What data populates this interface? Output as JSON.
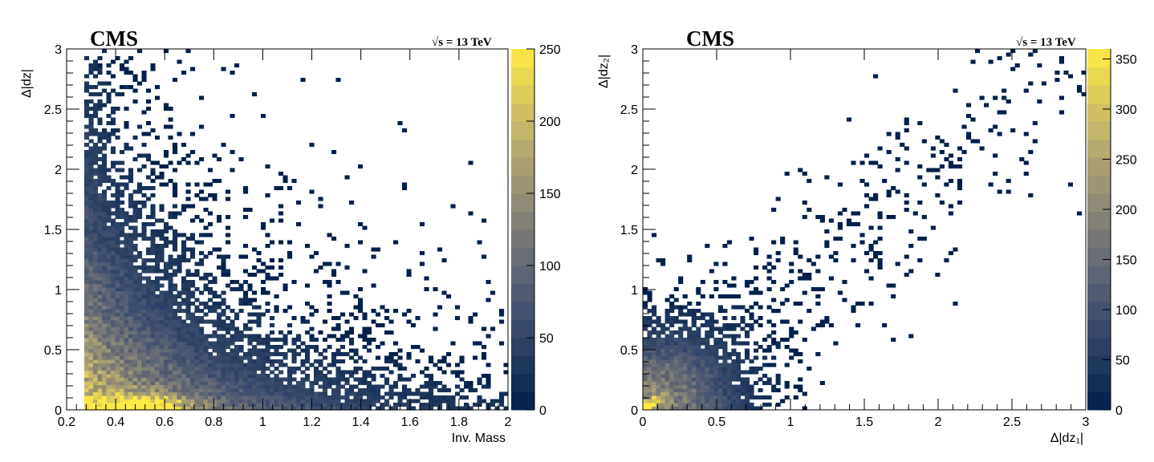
{
  "chart_data": [
    {
      "type": "heatmap",
      "label": "CMS",
      "energy_label": "√s = 13 TeV",
      "xlabel": "Inv. Mass",
      "ylabel": "Δ|dz|",
      "xlim": [
        0.2,
        2
      ],
      "ylim": [
        0,
        3
      ],
      "x_ticks": [
        0.2,
        0.4,
        0.6,
        0.8,
        1,
        1.2,
        1.4,
        1.6,
        1.8,
        2
      ],
      "x_tick_labels": [
        "0.2",
        "0.4",
        "0.6",
        "0.8",
        "1",
        "1.2",
        "1.4",
        "1.6",
        "1.8",
        "2"
      ],
      "y_ticks": [
        0,
        0.5,
        1,
        1.5,
        2,
        2.5,
        3
      ],
      "y_tick_labels": [
        "0",
        "0.5",
        "1",
        "1.5",
        "2",
        "2.5",
        "3"
      ],
      "z_range": [
        0,
        250
      ],
      "z_ticks": [
        0,
        50,
        100,
        150,
        200,
        250
      ],
      "z_tick_labels": [
        "0",
        "50",
        "100",
        "150",
        "200",
        "250"
      ],
      "colorscale": "cividis",
      "x_min_populated": 0.27,
      "bins": {
        "nx": 100,
        "ny": 100
      },
      "peak": {
        "x": 0.5,
        "y": 0.05,
        "value": 250
      }
    },
    {
      "type": "heatmap",
      "label": "CMS",
      "energy_label": "√s = 13 TeV",
      "xlabel": "Δ|dz₁|",
      "ylabel": "Δ|dz₂|",
      "xlim": [
        0,
        3
      ],
      "ylim": [
        0,
        3
      ],
      "x_ticks": [
        0,
        0.5,
        1,
        1.5,
        2,
        2.5,
        3
      ],
      "x_tick_labels": [
        "0",
        "0.5",
        "1",
        "1.5",
        "2",
        "2.5",
        "3"
      ],
      "y_ticks": [
        0,
        0.5,
        1,
        1.5,
        2,
        2.5,
        3
      ],
      "y_tick_labels": [
        "0",
        "0.5",
        "1",
        "1.5",
        "2",
        "2.5",
        "3"
      ],
      "z_range": [
        0,
        360
      ],
      "z_ticks": [
        0,
        50,
        100,
        150,
        200,
        250,
        300,
        350
      ],
      "z_tick_labels": [
        "0",
        "50",
        "100",
        "150",
        "200",
        "250",
        "300",
        "350"
      ],
      "colorscale": "cividis",
      "bins": {
        "nx": 100,
        "ny": 100
      },
      "peak": {
        "x": 0.08,
        "y": 0.08,
        "value": 360
      }
    }
  ],
  "colors": {
    "low": "#00204c",
    "mid": "#7c7b78",
    "high": "#ffe945",
    "axis": "#000000",
    "background": "#ffffff"
  }
}
